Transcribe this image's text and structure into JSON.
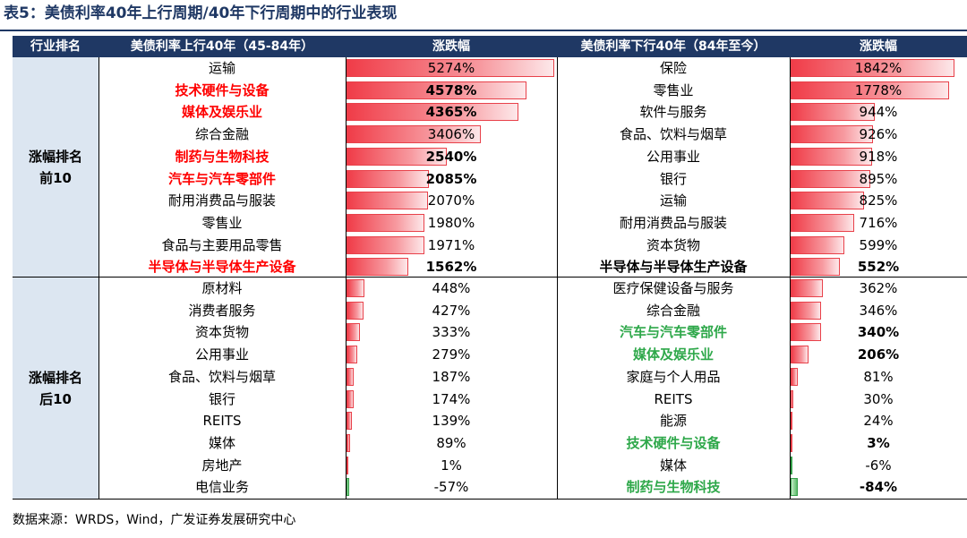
{
  "title": "表5：美债利率40年上行周期/40年下行周期中的行业表现",
  "source": "数据来源：WRDS，Wind，广发证券发展研究中心",
  "colors": {
    "header_bg": "#1f3864",
    "group_bg": "#dce6f1",
    "pos_bar": "#f03c48",
    "neg_bar": "#35a04a",
    "red_text": "#ff0000",
    "green_text": "#2ea84a"
  },
  "chart_data": {
    "type": "table",
    "headers": [
      "行业排名",
      "美债利率上行40年（45-84年）",
      "涨跌幅",
      "美债利率下行40年（84年至今）",
      "涨跌幅"
    ],
    "groups": [
      {
        "label_lines": [
          "涨幅排名",
          "前10"
        ]
      },
      {
        "label_lines": [
          "涨幅排名",
          "后10"
        ]
      }
    ],
    "rows": [
      {
        "up_name": "运输",
        "up_value": 5274,
        "up_label": "5274%",
        "up_style": "",
        "dn_name": "保险",
        "dn_value": 1842,
        "dn_label": "1842%",
        "dn_style": ""
      },
      {
        "up_name": "技术硬件与设备",
        "up_value": 4578,
        "up_label": "4578%",
        "up_style": "red",
        "dn_name": "零售业",
        "dn_value": 1778,
        "dn_label": "1778%",
        "dn_style": ""
      },
      {
        "up_name": "媒体及娱乐业",
        "up_value": 4365,
        "up_label": "4365%",
        "up_style": "red",
        "dn_name": "软件与服务",
        "dn_value": 944,
        "dn_label": "944%",
        "dn_style": ""
      },
      {
        "up_name": "综合金融",
        "up_value": 3406,
        "up_label": "3406%",
        "up_style": "",
        "dn_name": "食品、饮料与烟草",
        "dn_value": 926,
        "dn_label": "926%",
        "dn_style": ""
      },
      {
        "up_name": "制药与生物科技",
        "up_value": 2540,
        "up_label": "2540%",
        "up_style": "red",
        "dn_name": "公用事业",
        "dn_value": 918,
        "dn_label": "918%",
        "dn_style": ""
      },
      {
        "up_name": "汽车与汽车零部件",
        "up_value": 2085,
        "up_label": "2085%",
        "up_style": "red",
        "dn_name": "银行",
        "dn_value": 895,
        "dn_label": "895%",
        "dn_style": ""
      },
      {
        "up_name": "耐用消费品与服装",
        "up_value": 2070,
        "up_label": "2070%",
        "up_style": "",
        "dn_name": "运输",
        "dn_value": 825,
        "dn_label": "825%",
        "dn_style": ""
      },
      {
        "up_name": "零售业",
        "up_value": 1980,
        "up_label": "1980%",
        "up_style": "",
        "dn_name": "耐用消费品与服装",
        "dn_value": 716,
        "dn_label": "716%",
        "dn_style": ""
      },
      {
        "up_name": "食品与主要用品零售",
        "up_value": 1971,
        "up_label": "1971%",
        "up_style": "",
        "dn_name": "资本货物",
        "dn_value": 599,
        "dn_label": "599%",
        "dn_style": ""
      },
      {
        "up_name": "半导体与半导体生产设备",
        "up_value": 1562,
        "up_label": "1562%",
        "up_style": "red",
        "dn_name": "半导体与半导体生产设备",
        "dn_value": 552,
        "dn_label": "552%",
        "dn_style": "black"
      },
      {
        "up_name": "原材料",
        "up_value": 448,
        "up_label": "448%",
        "up_style": "",
        "dn_name": "医疗保健设备与服务",
        "dn_value": 362,
        "dn_label": "362%",
        "dn_style": ""
      },
      {
        "up_name": "消费者服务",
        "up_value": 427,
        "up_label": "427%",
        "up_style": "",
        "dn_name": "综合金融",
        "dn_value": 346,
        "dn_label": "346%",
        "dn_style": ""
      },
      {
        "up_name": "资本货物",
        "up_value": 333,
        "up_label": "333%",
        "up_style": "",
        "dn_name": "汽车与汽车零部件",
        "dn_value": 340,
        "dn_label": "340%",
        "dn_style": "green"
      },
      {
        "up_name": "公用事业",
        "up_value": 279,
        "up_label": "279%",
        "up_style": "",
        "dn_name": "媒体及娱乐业",
        "dn_value": 206,
        "dn_label": "206%",
        "dn_style": "green"
      },
      {
        "up_name": "食品、饮料与烟草",
        "up_value": 187,
        "up_label": "187%",
        "up_style": "",
        "dn_name": "家庭与个人用品",
        "dn_value": 81,
        "dn_label": "81%",
        "dn_style": ""
      },
      {
        "up_name": "银行",
        "up_value": 174,
        "up_label": "174%",
        "up_style": "",
        "dn_name": "REITS",
        "dn_value": 30,
        "dn_label": "30%",
        "dn_style": ""
      },
      {
        "up_name": "REITS",
        "up_value": 139,
        "up_label": "139%",
        "up_style": "",
        "dn_name": "能源",
        "dn_value": 24,
        "dn_label": "24%",
        "dn_style": ""
      },
      {
        "up_name": "媒体",
        "up_value": 89,
        "up_label": "89%",
        "up_style": "",
        "dn_name": "技术硬件与设备",
        "dn_value": 3,
        "dn_label": "3%",
        "dn_style": "green"
      },
      {
        "up_name": "房地产",
        "up_value": 1,
        "up_label": "1%",
        "up_style": "",
        "dn_name": "媒体",
        "dn_value": -6,
        "dn_label": "-6%",
        "dn_style": ""
      },
      {
        "up_name": "电信业务",
        "up_value": -57,
        "up_label": "-57%",
        "up_style": "",
        "dn_name": "制药与生物科技",
        "dn_value": -84,
        "dn_label": "-84%",
        "dn_style": "green"
      }
    ]
  }
}
